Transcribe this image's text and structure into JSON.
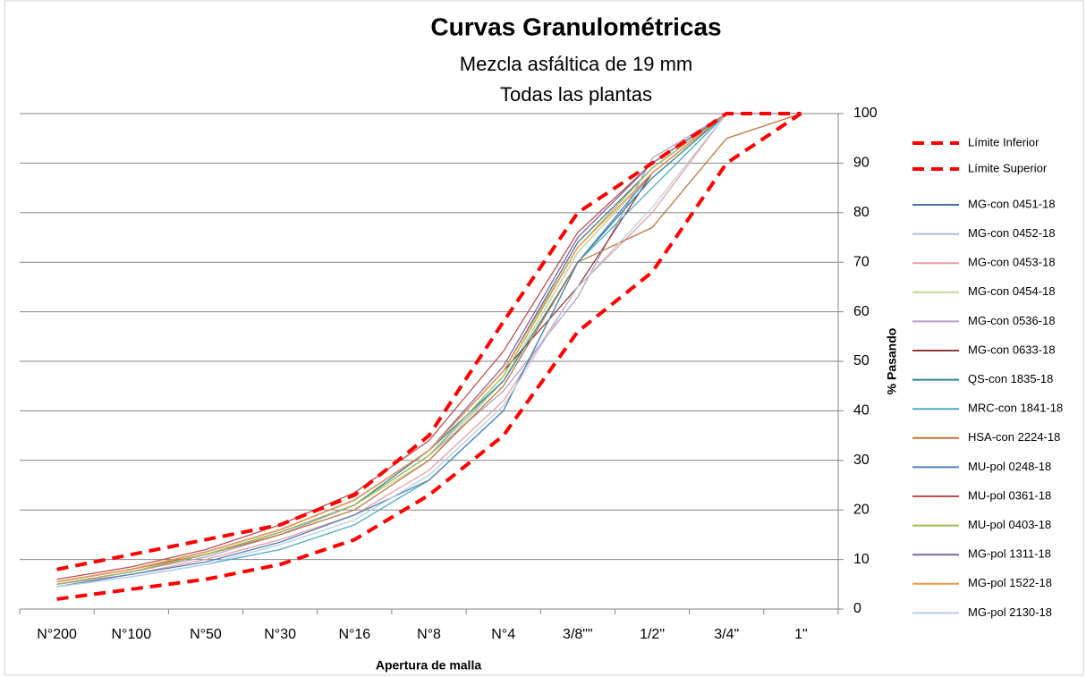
{
  "chart_data": {
    "type": "line",
    "title": "Curvas Granulométricas",
    "subtitle": [
      "Mezcla asfáltica de 19 mm",
      "Todas las plantas"
    ],
    "x_label": "Apertura de malla",
    "y_label": "% Pasando",
    "categories": [
      "N°200",
      "N°100",
      "N°50",
      "N°30",
      "N°16",
      "N°8",
      "N°4",
      "3/8\"\"",
      "1/2\"",
      "3/4\"",
      "1\""
    ],
    "ylim": [
      0,
      100
    ],
    "yticks": [
      0,
      10,
      20,
      30,
      40,
      50,
      60,
      70,
      80,
      90,
      100
    ],
    "grid": true,
    "series": [
      {
        "name": "Límite Inferior",
        "color": "#ff0000",
        "dashed": true,
        "values": [
          2,
          4,
          6,
          9,
          14,
          23,
          35,
          56,
          68,
          90,
          100
        ]
      },
      {
        "name": "Límite Superior",
        "color": "#ff0000",
        "dashed": true,
        "values": [
          8,
          11,
          14,
          17,
          23,
          35,
          58,
          80,
          90,
          100,
          100
        ]
      },
      {
        "name": "MG-con 0451-18",
        "color": "#4572a7",
        "values": [
          5.5,
          8,
          11.5,
          16,
          22,
          32,
          48,
          74,
          89,
          100,
          100
        ]
      },
      {
        "name": "MG-con 0452-18",
        "color": "#aabbdd",
        "values": [
          5,
          7.5,
          11,
          15,
          21,
          31,
          46,
          72,
          88,
          100,
          100
        ]
      },
      {
        "name": "MG-con 0453-18",
        "color": "#e6a0a0",
        "values": [
          5,
          7,
          10,
          14,
          19,
          28,
          42,
          65,
          80,
          100,
          100
        ]
      },
      {
        "name": "MG-con 0454-18",
        "color": "#c3d69b",
        "values": [
          5,
          7.5,
          11,
          15.5,
          21,
          30,
          46,
          72,
          88,
          100,
          100
        ]
      },
      {
        "name": "MG-con 0536-18",
        "color": "#b3a2c7",
        "values": [
          5,
          7.5,
          10.5,
          15,
          21,
          31,
          44,
          63,
          91,
          100,
          100
        ]
      },
      {
        "name": "MG-con 0633-18",
        "color": "#953735",
        "values": [
          5.5,
          8,
          11.5,
          16,
          22,
          32,
          48,
          65,
          88,
          100,
          100
        ]
      },
      {
        "name": "QS-con 1835-18",
        "color": "#31859c",
        "values": [
          5,
          7.5,
          11,
          15.5,
          21,
          32,
          46,
          70,
          87,
          100,
          100
        ]
      },
      {
        "name": "MRC-con 1841-18",
        "color": "#4bacc6",
        "values": [
          4.5,
          6.5,
          9,
          12,
          17,
          26,
          40,
          70,
          85,
          100,
          100
        ]
      },
      {
        "name": "HSA-con 2224-18",
        "color": "#c0763a",
        "values": [
          5.5,
          8,
          11,
          15,
          20,
          30,
          45,
          70,
          77,
          95,
          100
        ]
      },
      {
        "name": "MU-pol 0248-18",
        "color": "#4f81bd",
        "values": [
          4.5,
          7,
          9.5,
          13.5,
          19,
          26,
          40,
          70,
          88,
          100,
          100
        ]
      },
      {
        "name": "MU-pol 0361-18",
        "color": "#c0504d",
        "values": [
          6,
          8.5,
          12,
          17,
          23.5,
          34,
          52,
          76,
          90,
          100,
          100
        ]
      },
      {
        "name": "MU-pol 0403-18",
        "color": "#9bbb59",
        "values": [
          5,
          7.5,
          11,
          15.5,
          21,
          31,
          47,
          73,
          89,
          100,
          100
        ]
      },
      {
        "name": "MG-pol 1311-18",
        "color": "#8064a2",
        "values": [
          5.5,
          8,
          11.5,
          16,
          22,
          32,
          49,
          75,
          90,
          100,
          100
        ]
      },
      {
        "name": "MG-pol 1522-18",
        "color": "#f79646",
        "values": [
          5.5,
          8,
          11.5,
          16,
          22,
          32,
          48,
          73,
          88,
          100,
          100
        ]
      },
      {
        "name": "MG-pol 2130-18",
        "color": "#b9cde5",
        "values": [
          4.5,
          6.5,
          9,
          13,
          18,
          27,
          41,
          65,
          81,
          100,
          100
        ]
      }
    ]
  }
}
